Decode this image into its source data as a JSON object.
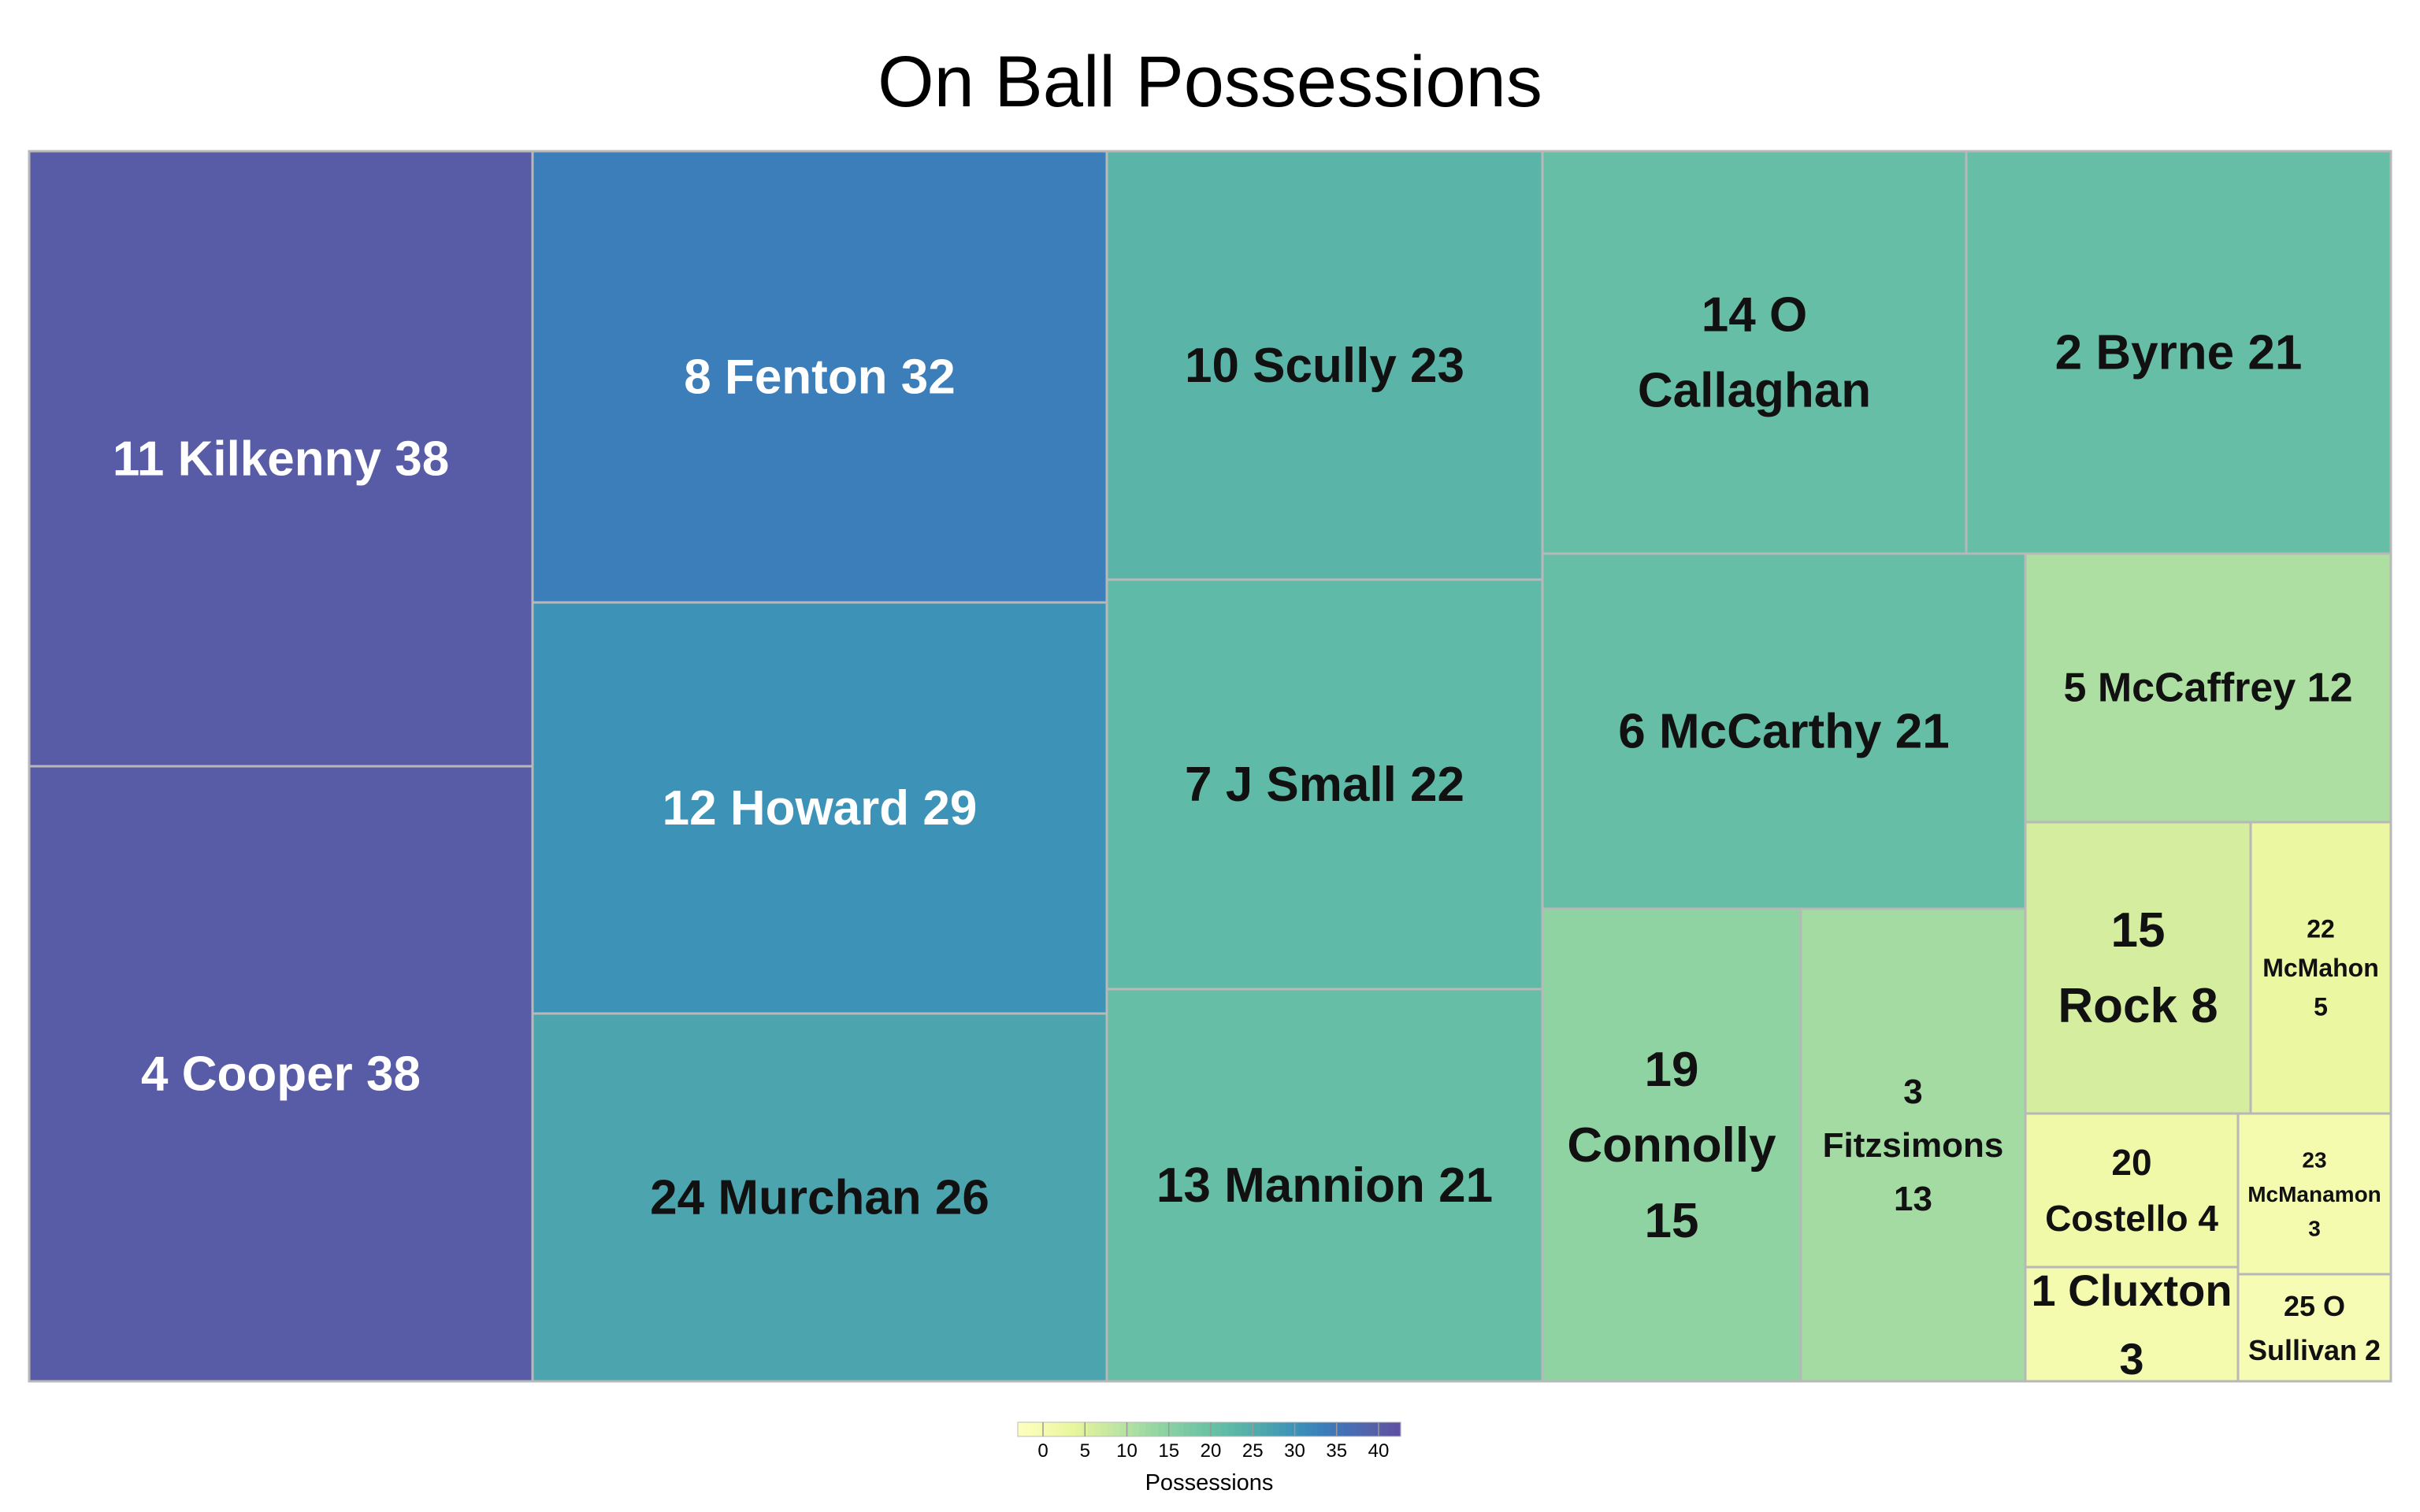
{
  "chart_data": {
    "type": "treemap",
    "title": "On Ball Possessions",
    "value_label": "Possessions",
    "items": [
      {
        "label": "11 Kilkenny",
        "value": 38
      },
      {
        "label": "4 Cooper",
        "value": 38
      },
      {
        "label": "8 Fenton",
        "value": 32
      },
      {
        "label": "12 Howard",
        "value": 29
      },
      {
        "label": "24 Murchan",
        "value": 26
      },
      {
        "label": "10 Scully",
        "value": 23
      },
      {
        "label": "7 J Small",
        "value": 22
      },
      {
        "label": "13 Mannion",
        "value": 21
      },
      {
        "label": "14 O Callaghan",
        "value": 21
      },
      {
        "label": "2 Byrne",
        "value": 21
      },
      {
        "label": "6 McCarthy",
        "value": 21
      },
      {
        "label": "5 McCaffrey",
        "value": 12
      },
      {
        "label": "19 Connolly",
        "value": 15
      },
      {
        "label": "3 Fitzsimons",
        "value": 13
      },
      {
        "label": "15 Rock",
        "value": 8
      },
      {
        "label": "22 McMahon",
        "value": 5
      },
      {
        "label": "20 Costello",
        "value": 4
      },
      {
        "label": "23 McManamon",
        "value": 3
      },
      {
        "label": "1 Cluxton",
        "value": 3
      },
      {
        "label": "25 O Sullivan",
        "value": 2
      }
    ],
    "color_scale": {
      "domain": [
        0,
        40
      ],
      "ticks": [
        0,
        5,
        10,
        15,
        20,
        25,
        30,
        35,
        40
      ],
      "colors": [
        "#fcffbf",
        "#f5fbb0",
        "#e8f69c",
        "#cfeba0",
        "#b4e1a2",
        "#96d6a3",
        "#7fcba4",
        "#6ac2a4",
        "#5bb6a8",
        "#4ea6ad",
        "#3e95b7",
        "#3a82ba",
        "#456fb5",
        "#5561a9",
        "#5e4fa2"
      ]
    }
  }
}
